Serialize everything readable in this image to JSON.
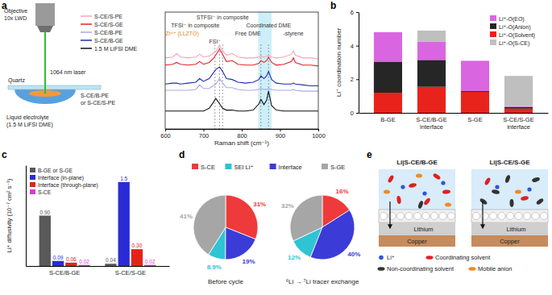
{
  "panel_labels": [
    "a",
    "b",
    "c",
    "d",
    "e"
  ],
  "schematic_a": {
    "objective": [
      "Objective",
      "10x LWD"
    ],
    "laser": "1064 nm laser",
    "quartz": "Quartz",
    "sample": [
      "S-CE/B-PE",
      "or S-CE/S-PE"
    ],
    "liquid": [
      "Liquid electrolyte",
      "(1.5 M LiFSI DME)"
    ]
  },
  "chart_data": [
    {
      "type": "line",
      "x_label": "Raman shift (cm⁻¹)",
      "xlim": [
        600,
        1000
      ],
      "xticks": [
        600,
        700,
        800,
        900,
        1000
      ],
      "ylim": [
        0,
        13
      ],
      "tick_labels": "x",
      "legend": "left",
      "x": [
        600,
        620,
        630,
        640,
        660,
        680,
        690,
        700,
        715,
        725,
        732,
        742,
        750,
        760,
        775,
        790,
        810,
        830,
        845,
        850,
        858,
        865,
        870,
        878,
        890,
        910,
        930,
        935,
        940,
        960,
        980,
        1000
      ],
      "series": [
        {
          "name": "S-CE/S-PE",
          "color": "#f4a6b8",
          "values": [
            7.9,
            8.0,
            8.4,
            8.0,
            7.9,
            8.0,
            8.3,
            8.0,
            8.1,
            8.4,
            8.6,
            9.3,
            8.7,
            8.2,
            8.4,
            8.0,
            7.9,
            7.9,
            8.0,
            8.1,
            8.0,
            8.1,
            8.2,
            8.0,
            7.9,
            8.0,
            8.3,
            8.7,
            8.2,
            7.9,
            7.9,
            7.8
          ]
        },
        {
          "name": "S-CE/S-GE",
          "color": "#e8202a",
          "values": [
            7.1,
            7.2,
            7.4,
            7.2,
            7.1,
            7.2,
            7.5,
            7.2,
            7.4,
            7.8,
            8.2,
            8.9,
            8.3,
            7.5,
            7.6,
            7.2,
            7.1,
            7.1,
            7.3,
            7.6,
            7.4,
            7.6,
            8.0,
            7.4,
            7.1,
            7.2,
            7.5,
            7.9,
            7.4,
            7.1,
            7.1,
            7.0
          ]
        },
        {
          "name": "S-CE/B-PE",
          "color": "#a9a9e6",
          "values": [
            4.3,
            4.3,
            4.3,
            4.3,
            4.3,
            4.4,
            4.9,
            4.5,
            4.5,
            4.8,
            5.0,
            5.6,
            5.1,
            4.6,
            4.6,
            4.4,
            4.3,
            4.3,
            4.4,
            4.5,
            4.4,
            4.4,
            4.5,
            4.4,
            4.3,
            4.3,
            4.3,
            4.4,
            4.3,
            4.2,
            4.2,
            4.2
          ]
        },
        {
          "name": "S-CE/B-GE",
          "color": "#1f2bb0",
          "values": [
            5.0,
            5.1,
            5.1,
            5.0,
            5.1,
            5.2,
            5.6,
            5.3,
            5.6,
            6.2,
            6.6,
            6.9,
            6.4,
            5.6,
            5.5,
            5.2,
            5.1,
            5.2,
            5.5,
            5.9,
            5.6,
            5.9,
            6.4,
            5.5,
            5.1,
            5.0,
            5.0,
            5.1,
            5.0,
            4.9,
            4.8,
            4.8
          ]
        },
        {
          "name": "1.5 M LiFSI DME",
          "color": "#111111",
          "values": [
            2.0,
            2.0,
            2.0,
            2.0,
            2.0,
            2.0,
            2.0,
            2.0,
            2.3,
            2.9,
            3.4,
            2.8,
            2.3,
            2.1,
            2.1,
            2.0,
            2.0,
            2.1,
            2.8,
            3.3,
            2.7,
            3.2,
            4.2,
            2.6,
            2.1,
            2.0,
            2.0,
            2.0,
            2.0,
            2.0,
            2.0,
            2.0
          ]
        }
      ],
      "band": [
        843,
        878
      ],
      "vlines": [
        730,
        742,
        750,
        850,
        870
      ],
      "annotations": [
        {
          "text": "Zr⁴⁺ (LLZTO)",
          "x": 688,
          "color": "#e08a1e"
        },
        {
          "text": "TFSI⁻ in composite",
          "x": 742,
          "color": "#333333"
        },
        {
          "text": "FSI⁻",
          "x": 730,
          "color": "#333333"
        },
        {
          "text": "STFSI⁻ in composite",
          "x": 750,
          "color": "#333333"
        },
        {
          "text": "Coordinated DME",
          "x": 870,
          "color": "#333333"
        },
        {
          "text": "Free DME",
          "x": 850,
          "color": "#333333"
        },
        {
          "text": "-styrene",
          "x": 935,
          "color": "#333333"
        }
      ]
    },
    {
      "type": "bar",
      "stacked": true,
      "y_label": "Li⁺ coordination number",
      "ylim": [
        0,
        6
      ],
      "yticks": [
        0,
        2,
        4,
        6
      ],
      "legend": "top-right",
      "categories": [
        "B-GE",
        "S-CE/B-GE interface",
        "S-GE",
        "S-CE/S-GE interface"
      ],
      "series": [
        {
          "name": "Li⁺-O(EO)",
          "color": "#d966e0",
          "values": [
            1.75,
            1.1,
            1.8,
            0.05
          ]
        },
        {
          "name": "Li⁺-O(Anion)",
          "color": "#262626",
          "values": [
            1.85,
            1.6,
            0.05,
            0.1
          ]
        },
        {
          "name": "Li⁺-O(Solvent)",
          "color": "#e8231c",
          "values": [
            1.2,
            1.55,
            1.25,
            0.25
          ]
        },
        {
          "name": "Li⁺-O(S-CE)",
          "color": "#bfbfbf",
          "values": [
            0,
            0.65,
            0,
            1.8
          ]
        }
      ]
    },
    {
      "type": "bar",
      "y_label": "Li⁺ diffusivity (10⁻⁷ cm² s⁻¹)",
      "ylim": [
        0,
        1.8
      ],
      "tick_labels": "x",
      "legend": "top-left",
      "data_labels": true,
      "categories": [
        "S-CE/B-GE",
        "S-CE/S-GE"
      ],
      "series": [
        {
          "name": "B-GE or S-GE",
          "color": "#595959",
          "values": [
            0.9,
            0.04
          ],
          "value_labels": [
            "0.90",
            "0.04"
          ]
        },
        {
          "name": "Interface (in-plane)",
          "color": "#2b2bd6",
          "values": [
            0.09,
            1.5
          ],
          "value_labels": [
            "0.09",
            "1.5"
          ]
        },
        {
          "name": "Interface (through-plane)",
          "color": "#e2231a",
          "values": [
            0.06,
            0.3
          ],
          "value_labels": [
            "0.06",
            "0.30"
          ]
        },
        {
          "name": "S-CE",
          "color": "#d13fd1",
          "values": [
            0.02,
            0.02
          ],
          "value_labels": [
            "0.02",
            "0.02"
          ]
        }
      ]
    },
    {
      "type": "pie",
      "legend": "top",
      "data_labels": true,
      "categories": [
        "S-CE",
        "SEI Li⁺",
        "Interface",
        "S-GE"
      ],
      "colors": [
        "#ee3a3a",
        "#2ec4d4",
        "#3b3bd8",
        "#a6a6a6"
      ],
      "series": [
        {
          "name": "Before cycle",
          "values": [
            31,
            8.9,
            19,
            41
          ],
          "value_labels": [
            "31%",
            "8.9%",
            "19%",
            "41%"
          ]
        },
        {
          "name": "⁶Li → ⁷Li tracer exchange",
          "values": [
            16,
            12,
            40,
            32
          ],
          "value_labels": [
            "16%",
            "12%",
            "40%",
            "32%"
          ]
        }
      ]
    }
  ],
  "schematic_e": {
    "titles": [
      "Li|S-CE/B-GE",
      "Li|S-CE/S-GE"
    ],
    "layers": [
      "Lithium",
      "Copper"
    ],
    "key": [
      {
        "name": "Li⁺",
        "color": "#2f55d4"
      },
      {
        "name": "Coordinating solvent",
        "color": "#e02020"
      },
      {
        "name": "Non-coordinating solvent",
        "color": "#333333"
      },
      {
        "name": "Mobile anion",
        "color": "#f08a24"
      }
    ]
  }
}
